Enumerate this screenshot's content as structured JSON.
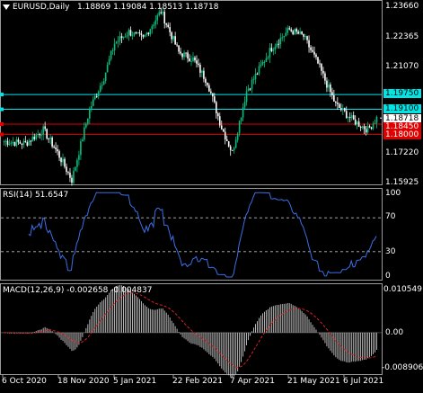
{
  "header": {
    "symbol": "EURUSD,Daily",
    "ohlc": "1.18869 1.19084 1.18513 1.18718"
  },
  "price_axis": {
    "labels": [
      "1.23660",
      "1.22365",
      "1.21070",
      "1.19750",
      "1.19100",
      "1.18718",
      "1.18450",
      "1.18000",
      "1.17220",
      "1.15925"
    ]
  },
  "levels": [
    {
      "price": 1.1975,
      "label": "1.19750",
      "color": "#00e5e5",
      "text_color": "#000000"
    },
    {
      "price": 1.191,
      "label": "1.19100",
      "color": "#00e5e5",
      "text_color": "#000000"
    },
    {
      "price": 1.1845,
      "label": "1.18450",
      "color": "#e00000",
      "text_color": "#ffffff"
    },
    {
      "price": 1.18,
      "label": "1.18000",
      "color": "#e00000",
      "text_color": "#ffffff"
    }
  ],
  "current_price": {
    "label": "1.18718",
    "color": "#ffffff"
  },
  "rsi": {
    "title": "RSI(14) 51.6547",
    "axis_labels": [
      "100",
      "70",
      "30",
      "0"
    ],
    "color": "#3b6fe6"
  },
  "macd": {
    "title": "MACD(12,26,9) -0.002658 -0.004837",
    "axis_labels": [
      "0.010549",
      "0.00",
      "-0.008906"
    ],
    "hist_color": "#c8c8c8",
    "signal_color": "#e02020"
  },
  "time_axis": {
    "labels": [
      "6 Oct 2020",
      "18 Nov 2020",
      "5 Jan 2021",
      "22 Feb 2021",
      "7 Apr 2021",
      "21 May 2021",
      "6 Jul 2021"
    ]
  },
  "colors": {
    "candle_up": "#00c080",
    "candle_down": "#ffffff",
    "background": "#000000",
    "frame": "#9a9a9a"
  }
}
